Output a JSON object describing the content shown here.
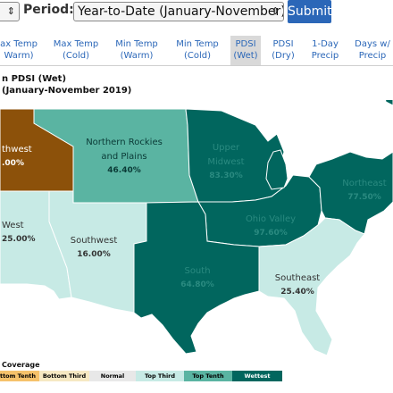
{
  "form": {
    "prev_select_value": "",
    "period_label": "Period:",
    "period_value": "Year-to-Date (January-November)",
    "submit_label": "Submit",
    "select_arrow": "⇕"
  },
  "tabs": [
    {
      "line1": "ax Temp",
      "line2": "Warm)"
    },
    {
      "line1": "Max Temp",
      "line2": "(Cold)"
    },
    {
      "line1": "Min Temp",
      "line2": "(Warm)"
    },
    {
      "line1": "Min Temp",
      "line2": "(Cold)"
    },
    {
      "line1": "PDSI",
      "line2": "(Wet)"
    },
    {
      "line1": "PDSI",
      "line2": "(Dry)"
    },
    {
      "line1": "1-Day",
      "line2": "Precip"
    },
    {
      "line1": "Days w/",
      "line2": "Precip"
    }
  ],
  "map": {
    "title_line1": "n PDSI (Wet)",
    "title_line2": "(January-November 2019)",
    "regions": {
      "northwest": {
        "label": "thwest",
        "pct": ".00%",
        "color": "#8c510a"
      },
      "northern_rockies": {
        "label1": "Northern Rockies",
        "label2": "and Plains",
        "pct": "46.40%",
        "color": "#5ab4a2"
      },
      "upper_midwest": {
        "label1": "Upper",
        "label2": "Midwest",
        "pct": "83.30%",
        "color": "#01665e"
      },
      "northeast": {
        "label": "Northeast",
        "pct": "77.50%",
        "color": "#01665e"
      },
      "ohio_valley": {
        "label": "Ohio Valley",
        "pct": "97.60%",
        "color": "#01665e"
      },
      "west": {
        "label": "West",
        "pct": "25.00%",
        "color": "#c7eae5"
      },
      "southwest": {
        "label": "Southwest",
        "pct": "16.00%",
        "color": "#c7eae5"
      },
      "south": {
        "label": "South",
        "pct": "64.80%",
        "color": "#01665e"
      },
      "southeast": {
        "label": "Southeast",
        "pct": "25.40%",
        "color": "#c7eae5"
      }
    }
  },
  "legend": {
    "title": "Coverage",
    "items": [
      {
        "label": "ttom Tenth",
        "color": "#f6c26b"
      },
      {
        "label": "Bottom Third",
        "color": "#f6e8c3"
      },
      {
        "label": "Normal",
        "color": "#e8e8e8"
      },
      {
        "label": "Top Third",
        "color": "#c7eae5"
      },
      {
        "label": "Top Tenth",
        "color": "#5ab4a2"
      },
      {
        "label": "Wettest",
        "color": "#01665e"
      }
    ]
  }
}
